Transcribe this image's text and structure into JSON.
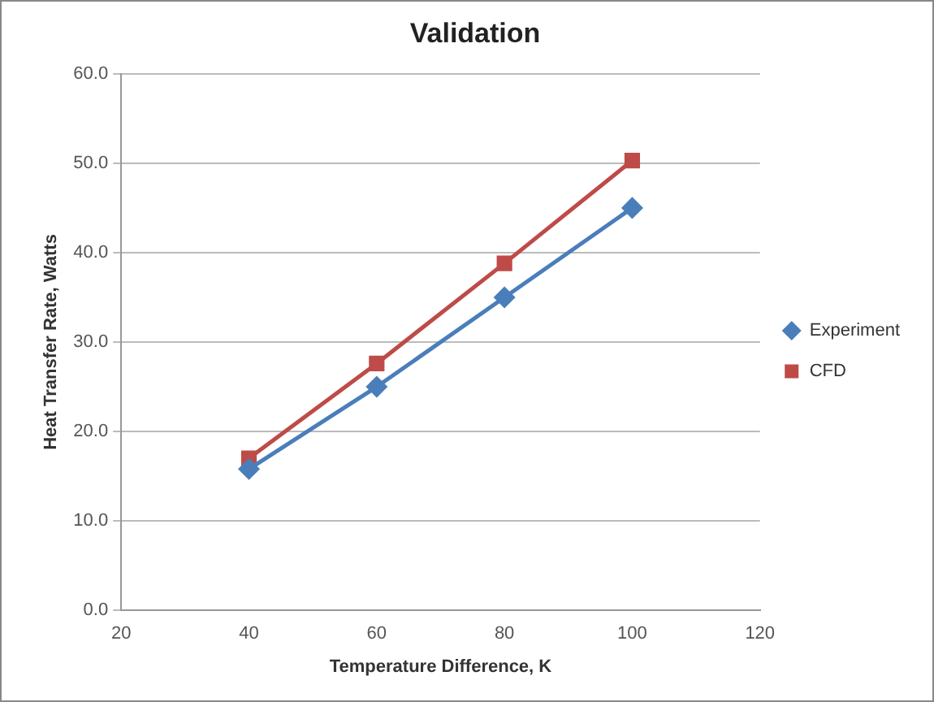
{
  "chart_data": {
    "type": "line",
    "title": "Validation",
    "xlabel": "Temperature Difference, K",
    "ylabel": "Heat Transfer Rate, Watts",
    "x": [
      40,
      60,
      80,
      100
    ],
    "series": [
      {
        "name": "Experiment",
        "color": "#4a7ebb",
        "marker": "diamond",
        "values": [
          15.8,
          25,
          35,
          45
        ]
      },
      {
        "name": "CFD",
        "color": "#be4b48",
        "marker": "square",
        "values": [
          17,
          27.6,
          38.8,
          50.3
        ]
      }
    ],
    "xlim": [
      20,
      120
    ],
    "xticks": [
      20,
      40,
      60,
      80,
      100,
      120
    ],
    "ylim": [
      0,
      60
    ],
    "yticks": [
      {
        "value": 0,
        "label": "0.0"
      },
      {
        "value": 10,
        "label": "10.0"
      },
      {
        "value": 20,
        "label": "20.0"
      },
      {
        "value": 30,
        "label": "30.0"
      },
      {
        "value": 40,
        "label": "40.0"
      },
      {
        "value": 50,
        "label": "50.0"
      },
      {
        "value": 60,
        "label": "60.0"
      }
    ],
    "grid": "y",
    "legend": "right",
    "line_style": "solid"
  }
}
